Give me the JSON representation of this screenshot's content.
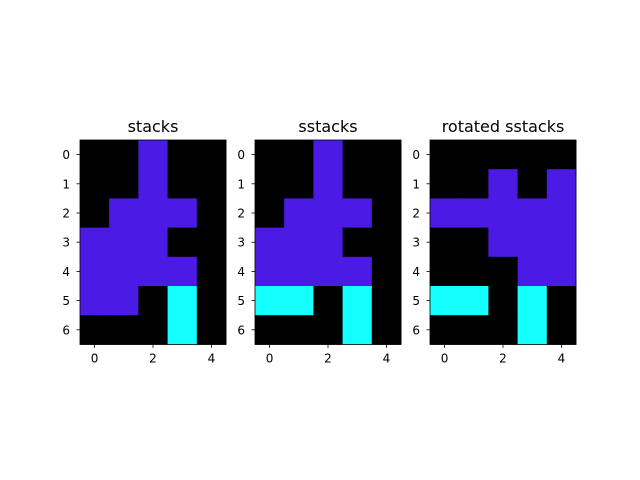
{
  "chart_data": {
    "type": "heatmap",
    "colors": {
      "0": "#000000",
      "1": "#4b1be5",
      "2": "#14ffff"
    },
    "xticks": [
      "0",
      "2",
      "4"
    ],
    "yticks": [
      "0",
      "1",
      "2",
      "3",
      "4",
      "5",
      "6"
    ],
    "panels": [
      {
        "title": "stacks",
        "grid": [
          [
            0,
            0,
            1,
            0,
            0
          ],
          [
            0,
            0,
            1,
            0,
            0
          ],
          [
            0,
            1,
            1,
            1,
            0
          ],
          [
            1,
            1,
            1,
            0,
            0
          ],
          [
            1,
            1,
            1,
            1,
            0
          ],
          [
            1,
            1,
            0,
            2,
            0
          ],
          [
            0,
            0,
            0,
            2,
            0
          ]
        ]
      },
      {
        "title": "sstacks",
        "grid": [
          [
            0,
            0,
            1,
            0,
            0
          ],
          [
            0,
            0,
            1,
            0,
            0
          ],
          [
            0,
            1,
            1,
            1,
            0
          ],
          [
            1,
            1,
            1,
            0,
            0
          ],
          [
            1,
            1,
            1,
            1,
            0
          ],
          [
            2,
            2,
            0,
            2,
            0
          ],
          [
            0,
            0,
            0,
            2,
            0
          ]
        ]
      },
      {
        "title": "rotated sstacks",
        "grid": [
          [
            0,
            0,
            0,
            0,
            0
          ],
          [
            0,
            0,
            1,
            0,
            1
          ],
          [
            1,
            1,
            1,
            1,
            1
          ],
          [
            0,
            0,
            1,
            1,
            1
          ],
          [
            0,
            0,
            0,
            1,
            1
          ],
          [
            2,
            2,
            0,
            2,
            0
          ],
          [
            0,
            0,
            0,
            2,
            0
          ]
        ]
      }
    ]
  }
}
